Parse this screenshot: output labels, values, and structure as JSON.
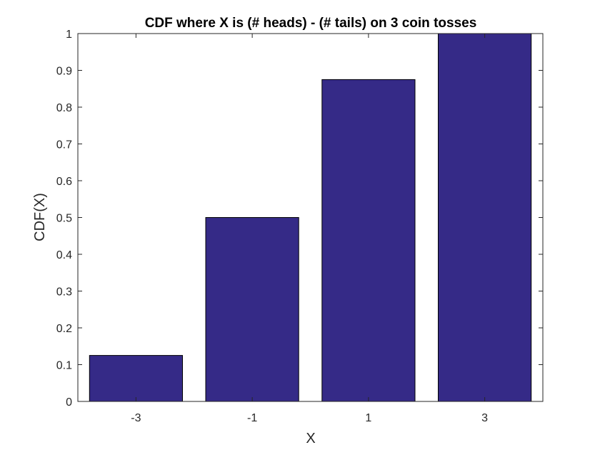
{
  "chart_data": {
    "type": "bar",
    "title": "CDF where X is (# heads) - (# tails) on 3 coin tosses",
    "xlabel": "X",
    "ylabel": "CDF(X)",
    "categories": [
      "-3",
      "-1",
      "1",
      "3"
    ],
    "values": [
      0.125,
      0.5,
      0.875,
      1.0
    ],
    "ylim": [
      0,
      1
    ],
    "yticks": [
      0,
      0.1,
      0.2,
      0.3,
      0.4,
      0.5,
      0.6,
      0.7,
      0.8,
      0.9,
      1
    ],
    "ytick_labels": [
      "0",
      "0.1",
      "0.2",
      "0.3",
      "0.4",
      "0.5",
      "0.6",
      "0.7",
      "0.8",
      "0.9",
      "1"
    ],
    "grid": false,
    "legend": "none",
    "colors": {
      "bar_fill": "#352a87",
      "bar_edge": "#000000",
      "axis": "#262626"
    }
  }
}
